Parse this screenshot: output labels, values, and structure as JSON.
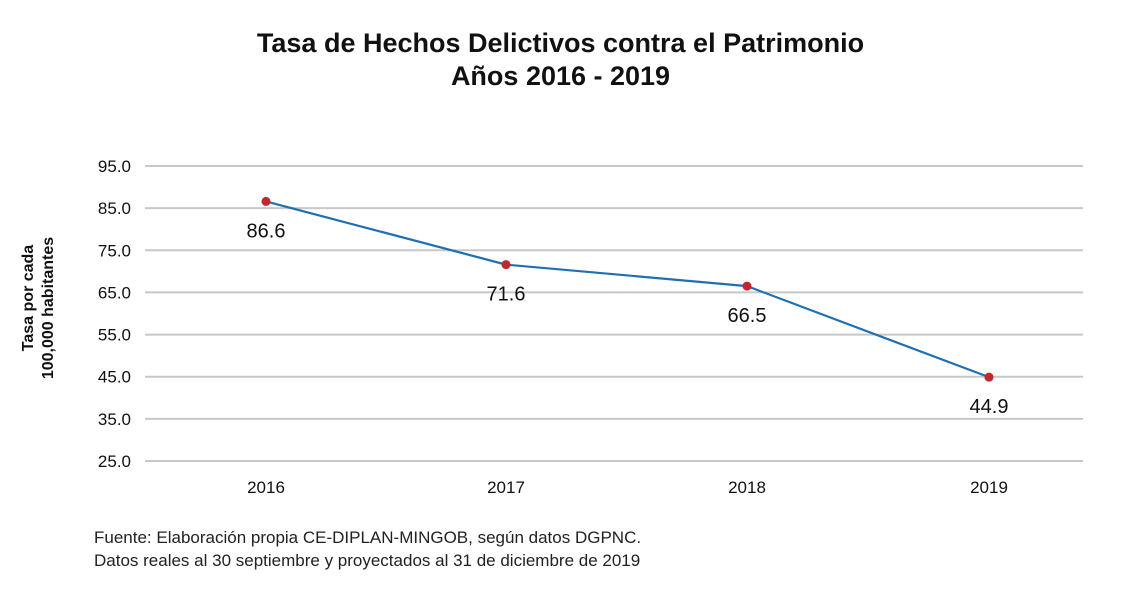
{
  "chart_data": {
    "type": "line",
    "title": "Tasa de Hechos Delictivos contra el Patrimonio",
    "subtitle": "Años 2016 - 2019",
    "ylabel_line1": "Tasa por cada",
    "ylabel_line2": "100,000 habitantes",
    "xlabel": "",
    "categories": [
      "2016",
      "2017",
      "2018",
      "2019"
    ],
    "values": [
      86.6,
      71.6,
      66.5,
      44.9
    ],
    "data_labels": [
      "86.6",
      "71.6",
      "66.5",
      "44.9"
    ],
    "yticks": [
      "95.0",
      "85.0",
      "75.0",
      "65.0",
      "55.0",
      "45.0",
      "35.0",
      "25.0"
    ],
    "ylim": [
      25,
      95
    ],
    "grid": true,
    "line_color": "#1f6fb2",
    "marker_color": "#c0282d",
    "grid_color": "#c8c8c8"
  },
  "source": {
    "line1": "Fuente: Elaboración propia CE-DIPLAN-MINGOB, según datos DGPNC.",
    "line2": "Datos reales al 30 septiembre y proyectados al 31 de diciembre de 2019"
  }
}
